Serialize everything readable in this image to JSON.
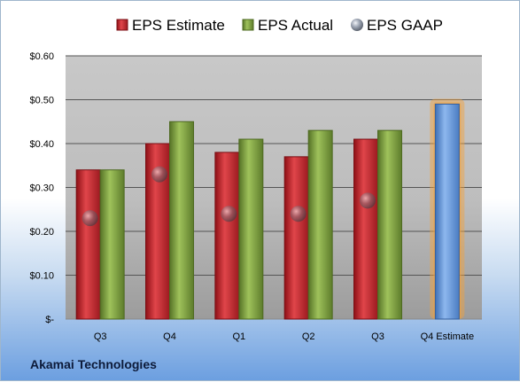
{
  "company_label": "Akamai Technologies",
  "chart_data": {
    "type": "bar",
    "categories": [
      "Q3",
      "Q4",
      "Q1",
      "Q2",
      "Q3",
      "Q4 Estimate"
    ],
    "series": [
      {
        "name": "EPS Estimate",
        "values": [
          0.34,
          0.4,
          0.38,
          0.37,
          0.41,
          null
        ],
        "color": "#c0282e"
      },
      {
        "name": "EPS Actual",
        "values": [
          0.34,
          0.45,
          0.41,
          0.43,
          0.43,
          null
        ],
        "color": "#7fa23e"
      },
      {
        "name": "EPS GAAP",
        "values": [
          0.23,
          0.33,
          0.24,
          0.24,
          0.27,
          null
        ],
        "color": "#aab4c2",
        "marker": "sphere"
      },
      {
        "name": "",
        "values": [
          null,
          null,
          null,
          null,
          null,
          0.49
        ],
        "color": "#5b8fd6",
        "highlight": "#f5a23a"
      }
    ],
    "ylim": [
      0,
      0.6
    ],
    "yticks": [
      {
        "value": 0,
        "label": "$-"
      },
      {
        "value": 0.1,
        "label": "$0.10"
      },
      {
        "value": 0.2,
        "label": "$0.20"
      },
      {
        "value": 0.3,
        "label": "$0.30"
      },
      {
        "value": 0.4,
        "label": "$0.40"
      },
      {
        "value": 0.5,
        "label": "$0.50"
      },
      {
        "value": 0.6,
        "label": "$0.60"
      }
    ],
    "grid": true,
    "legend_position": "top"
  }
}
